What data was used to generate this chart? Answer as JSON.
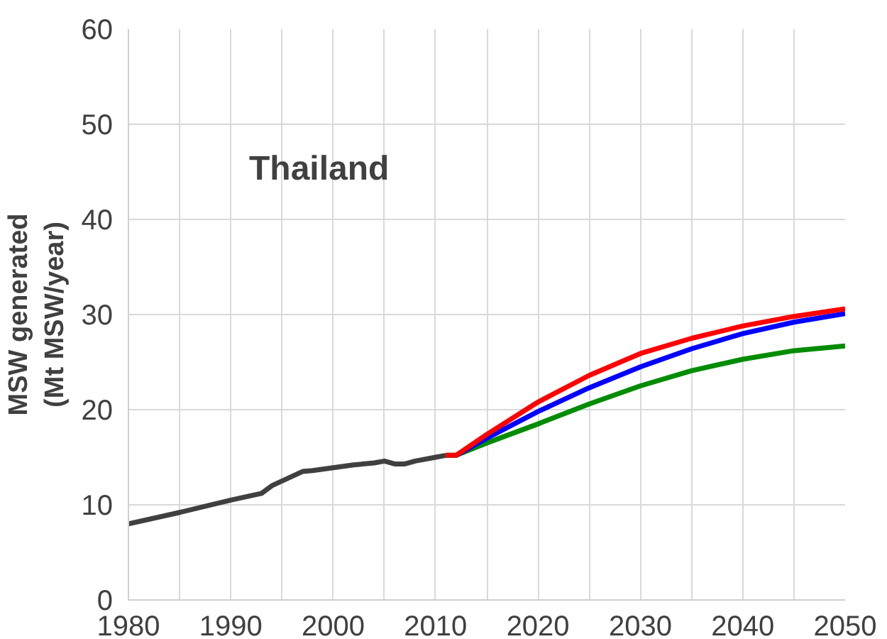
{
  "chart_data": {
    "type": "line",
    "ylabel": "MSW generated\n(Mt MSW/year)",
    "annotations": [
      "Thailand"
    ],
    "xlim": [
      1980,
      2050
    ],
    "ylim": [
      0,
      60
    ],
    "xticks": [
      1980,
      {
        "value": 1985,
        "label": null
      },
      1990,
      {
        "value": 1995,
        "label": null
      },
      2000,
      {
        "value": 2005,
        "label": null
      },
      2010,
      {
        "value": 2015,
        "label": null
      },
      2020,
      {
        "value": 2025,
        "label": null
      },
      2030,
      {
        "value": 2035,
        "label": null
      },
      2040,
      {
        "value": 2045,
        "label": null
      },
      2050
    ],
    "yticks": [
      0,
      10,
      20,
      30,
      40,
      50,
      60
    ],
    "grid": true,
    "marker": "none",
    "line_style": "solid",
    "series": [
      {
        "color": "#404040",
        "x": [
          1980,
          1985,
          1990,
          1993,
          1994,
          1997,
          1998,
          2000,
          2002,
          2004,
          2005,
          2006,
          2007,
          2008,
          2010,
          2011
        ],
        "values": [
          8.0,
          9.2,
          10.5,
          11.2,
          12.0,
          13.5,
          13.6,
          13.9,
          14.2,
          14.4,
          14.6,
          14.3,
          14.3,
          14.6,
          15.0,
          15.2
        ]
      },
      {
        "color": "#008c00",
        "x": [
          2011,
          2012,
          2015,
          2020,
          2025,
          2030,
          2035,
          2040,
          2045,
          2050
        ],
        "values": [
          15.2,
          15.2,
          16.5,
          18.5,
          20.6,
          22.5,
          24.1,
          25.3,
          26.2,
          26.7
        ]
      },
      {
        "color": "#0000ff",
        "x": [
          2012,
          2015,
          2020,
          2025,
          2030,
          2035,
          2040,
          2045,
          2050
        ],
        "values": [
          15.2,
          17.0,
          19.8,
          22.3,
          24.5,
          26.4,
          28.0,
          29.2,
          30.1
        ]
      },
      {
        "color": "#ff0000",
        "x": [
          2011,
          2012,
          2015,
          2020,
          2025,
          2030,
          2035,
          2040,
          2045,
          2050
        ],
        "values": [
          15.2,
          15.2,
          17.4,
          20.8,
          23.6,
          25.9,
          27.5,
          28.8,
          29.8,
          30.6
        ]
      }
    ]
  }
}
